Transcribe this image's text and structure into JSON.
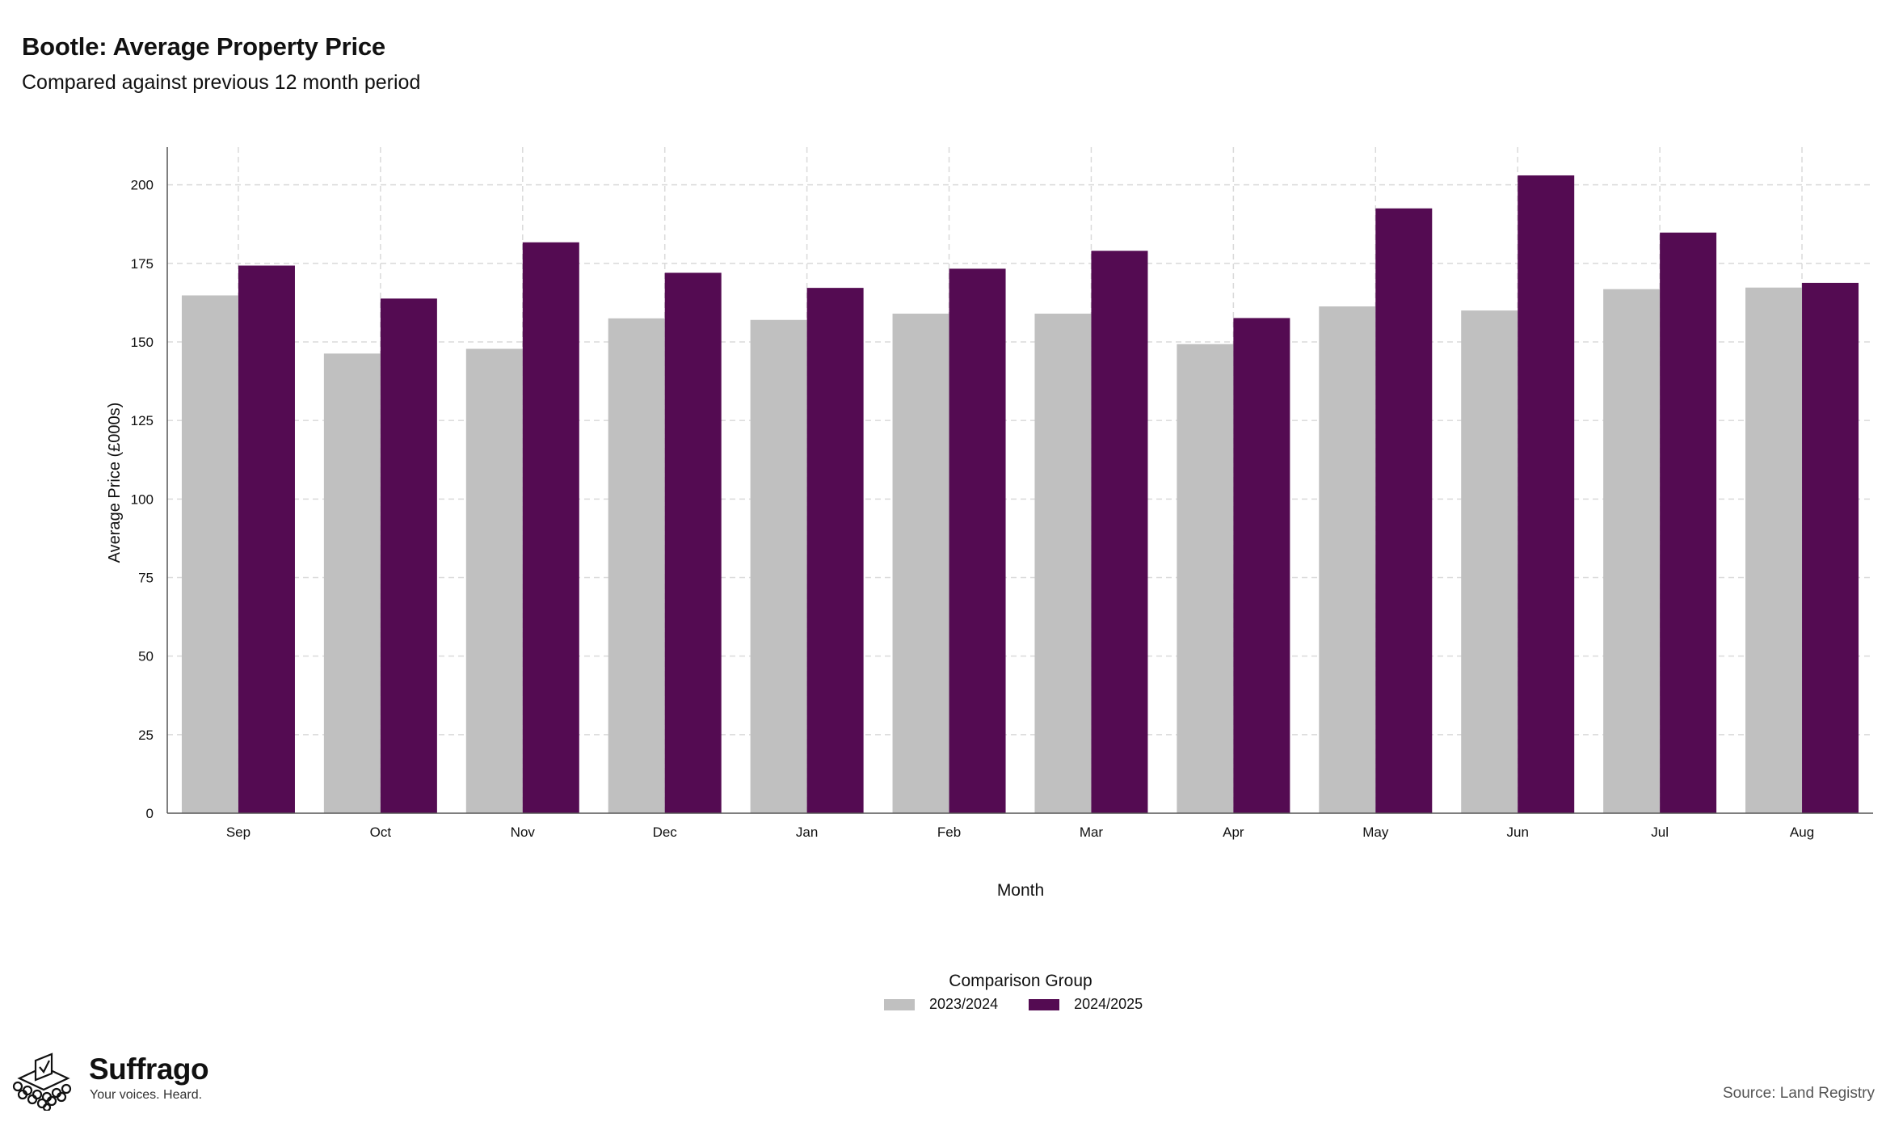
{
  "colors": {
    "series_prev": "#c0c0c0",
    "series_curr": "#540b52"
  },
  "chart_data": {
    "type": "bar",
    "title": "Bootle: Average Property Price",
    "subtitle": "Compared against previous 12 month period",
    "xlabel": "Month",
    "ylabel": "Average Price (£000s)",
    "ylim": [
      0,
      212
    ],
    "yticks": [
      0,
      25,
      50,
      75,
      100,
      125,
      150,
      175,
      200
    ],
    "grid": true,
    "legend_title": "Comparison Group",
    "legend_position": "bottom",
    "categories": [
      "Sep",
      "Oct",
      "Nov",
      "Dec",
      "Jan",
      "Feb",
      "Mar",
      "Apr",
      "May",
      "Jun",
      "Jul",
      "Aug"
    ],
    "series": [
      {
        "name": "2023/2024",
        "values": [
          164.8,
          146.3,
          147.8,
          157.5,
          157.0,
          159.0,
          159.0,
          149.3,
          161.3,
          160.0,
          166.8,
          167.3
        ]
      },
      {
        "name": "2024/2025",
        "values": [
          174.3,
          163.8,
          181.7,
          172.0,
          167.2,
          173.3,
          179.0,
          157.6,
          192.5,
          203.0,
          184.8,
          168.8
        ]
      }
    ]
  },
  "branding": {
    "name": "Suffrago",
    "tagline": "Your voices. Heard.",
    "icon": "ballot-box-icon"
  },
  "source": "Source: Land Registry"
}
